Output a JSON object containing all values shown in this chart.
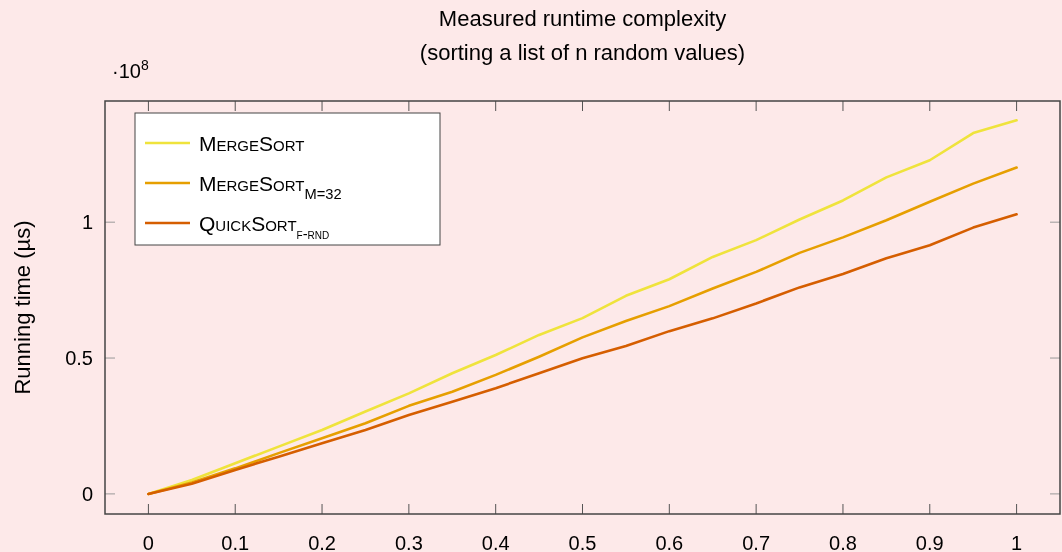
{
  "chart_data": {
    "type": "line",
    "title": "Measured runtime complexity",
    "subtitle": "(sorting a list of n random values)",
    "ylabel": "Running time (µs)",
    "annotations": [
      "·10$^{8}$"
    ],
    "x": [
      0,
      0.05,
      0.1,
      0.15,
      0.2,
      0.25,
      0.3,
      0.35,
      0.4,
      0.45,
      0.5,
      0.55,
      0.6,
      0.65,
      0.7,
      0.75,
      0.8,
      0.85,
      0.9,
      0.95,
      1
    ],
    "series": [
      {
        "name": "MergeSort",
        "color": "#efe33c",
        "values": [
          0,
          0.051,
          0.113,
          0.174,
          0.235,
          0.303,
          0.37,
          0.444,
          0.511,
          0.585,
          0.647,
          0.729,
          0.79,
          0.872,
          0.934,
          1.01,
          1.08,
          1.165,
          1.228,
          1.328,
          1.375
        ]
      },
      {
        "name": "MergeSort$_{M=32}$",
        "color": "#e69f00",
        "values": [
          0,
          0.042,
          0.094,
          0.15,
          0.205,
          0.26,
          0.324,
          0.376,
          0.438,
          0.505,
          0.576,
          0.636,
          0.691,
          0.756,
          0.817,
          0.887,
          0.944,
          1.007,
          1.075,
          1.142,
          1.201
        ]
      },
      {
        "name": "QuickSort$_{f-rnd}$",
        "color": "#d55e00",
        "values": [
          0,
          0.037,
          0.088,
          0.137,
          0.186,
          0.235,
          0.29,
          0.339,
          0.389,
          0.444,
          0.499,
          0.544,
          0.599,
          0.646,
          0.701,
          0.76,
          0.809,
          0.867,
          0.915,
          0.98,
          1.029
        ]
      }
    ],
    "xlim": [
      -0.05,
      1.05
    ],
    "ylim": [
      -0.074,
      1.446
    ],
    "xticks": [
      0,
      0.1,
      0.2,
      0.3,
      0.4,
      0.5,
      0.6,
      0.7,
      0.8,
      0.9,
      1
    ],
    "yticks": [
      0,
      0.5,
      1
    ],
    "legend": "top left",
    "grid": false,
    "marker": "none",
    "line_style": "solid"
  }
}
